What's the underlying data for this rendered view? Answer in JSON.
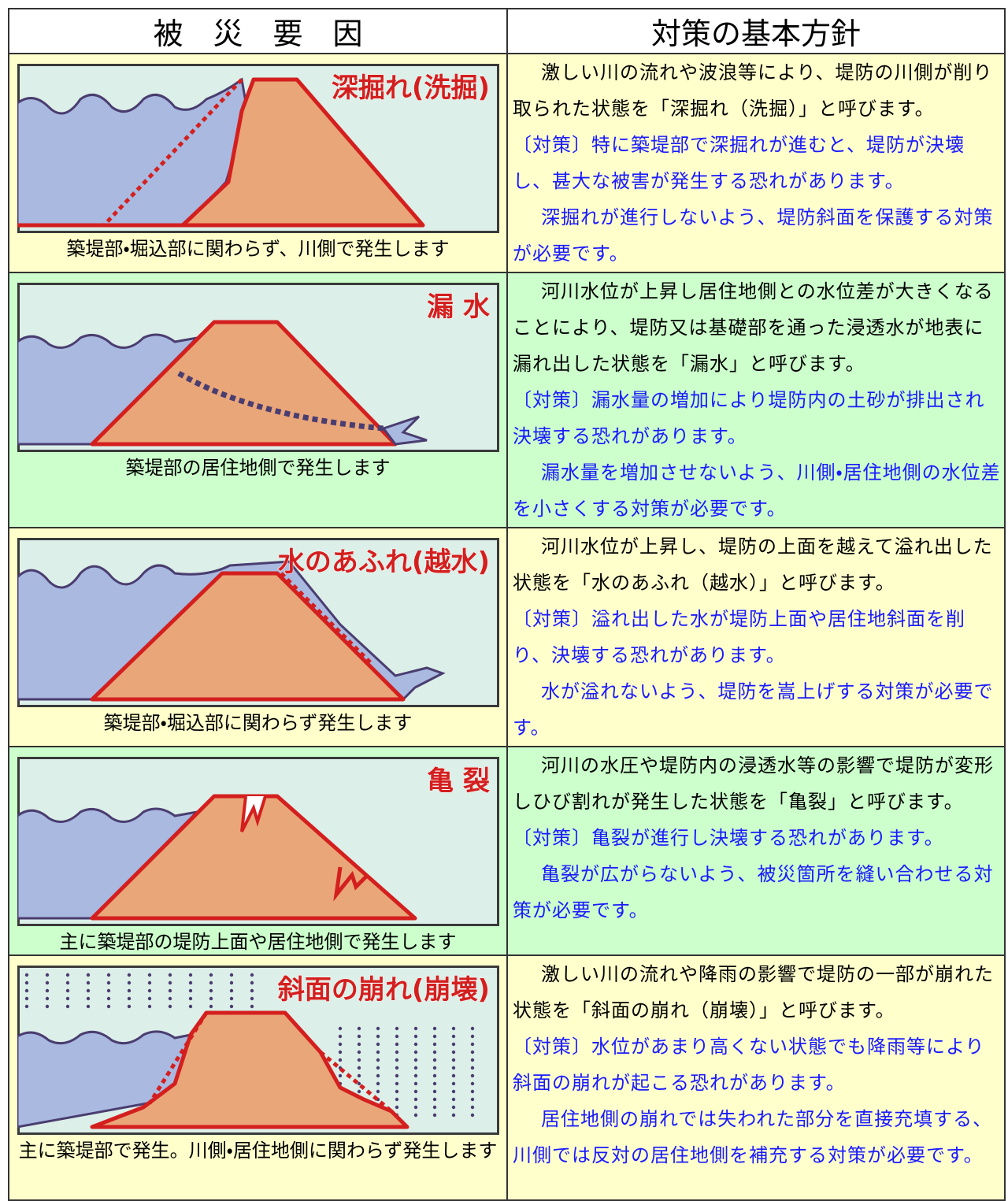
{
  "header": {
    "cause": "被　災　要　因",
    "policy": "対策の基本方針"
  },
  "rows": [
    {
      "label": "深掘れ(洗掘)",
      "caption": "築堤部・堀込部に関わらず、川側で発生します",
      "description": "激しい川の流れや波浪等により、堤防の川側が削り取られた状態を「深掘れ（洗掘）」と呼びます。",
      "countermeasure": "〔対策〕特に築堤部で深掘れが進むと、堤防が決壊し、甚大な被害が発生する恐れがあります。",
      "note": "深掘れが進行しないよう、堤防斜面を保護する対策が必要です。"
    },
    {
      "label": "漏 水",
      "caption": "築堤部の居住地側で発生します",
      "description": "河川水位が上昇し居住地側との水位差が大きくなることにより、堤防又は基礎部を通った浸透水が地表に漏れ出した状態を「漏水」と呼びます。",
      "countermeasure": "〔対策〕漏水量の増加により堤防内の土砂が排出され決壊する恐れがあります。",
      "note": "漏水量を増加させないよう、川側・居住地側の水位差を小さくする対策が必要です。"
    },
    {
      "label": "水のあふれ(越水)",
      "caption": "築堤部・堀込部に関わらず発生します",
      "description": "河川水位が上昇し、堤防の上面を越えて溢れ出した状態を「水のあふれ（越水）」と呼びます。",
      "countermeasure": "〔対策〕溢れ出した水が堤防上面や居住地斜面を削り、決壊する恐れがあります。",
      "note": "水が溢れないよう、堤防を嵩上げする対策が必要です。"
    },
    {
      "label": "亀 裂",
      "caption": "主に築堤部の堤防上面や居住地側で発生します",
      "description": "河川の水圧や堤防内の浸透水等の影響で堤防が変形しひび割れが発生した状態を「亀裂」と呼びます。",
      "countermeasure": "〔対策〕亀裂が進行し決壊する恐れがあります。",
      "note": "亀裂が広がらないよう、被災箇所を縫い合わせる対策が必要です。"
    },
    {
      "label": "斜面の崩れ(崩壊)",
      "caption": "主に築堤部で発生。川側・居住地側に関わらず発生します",
      "description": "激しい川の流れや降雨の影響で堤防の一部が崩れた状態を「斜面の崩れ（崩壊）」と呼びます。",
      "countermeasure": "〔対策〕水位があまり高くない状態でも降雨等により斜面の崩れが起こる恐れがあります。",
      "note": "居住地側の崩れでは失われた部分を直接充填する、川側では反対の居住地側を補充する対策が必要です。"
    }
  ]
}
